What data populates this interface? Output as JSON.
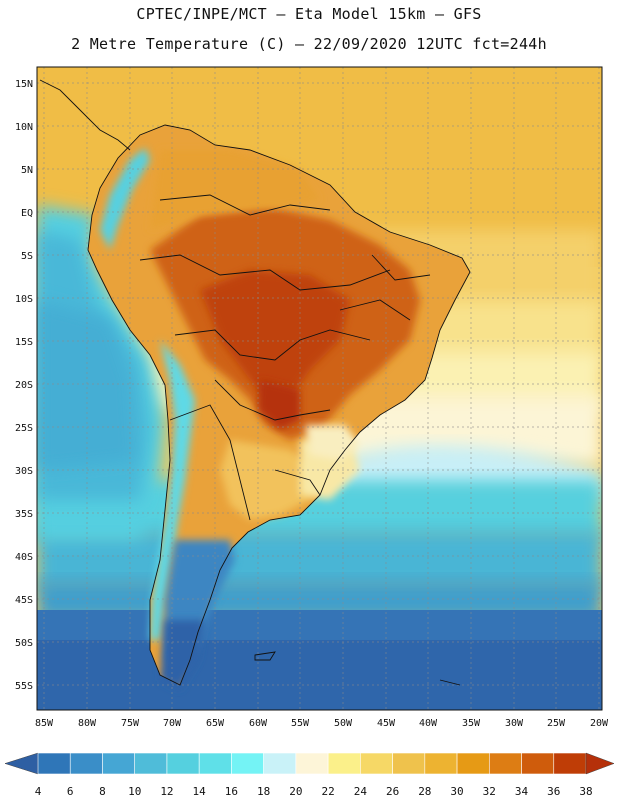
{
  "header": {
    "line1": "CPTEC/INPE/MCT –  Eta Model 15km – GFS",
    "line2": "2 Metre Temperature (C) – 22/09/2020 12UTC fct=244h"
  },
  "map": {
    "lat_ticks": [
      "15N",
      "10N",
      "5N",
      "EQ",
      "5S",
      "10S",
      "15S",
      "20S",
      "25S",
      "30S",
      "35S",
      "40S",
      "45S",
      "50S",
      "55S"
    ],
    "lon_ticks": [
      "85W",
      "80W",
      "75W",
      "70W",
      "65W",
      "60W",
      "55W",
      "50W",
      "45W",
      "40W",
      "35W",
      "30W",
      "25W",
      "20W"
    ],
    "lat_range": [
      -57,
      16
    ],
    "lon_range": [
      -86,
      -20
    ]
  },
  "colorbar": {
    "labels": [
      "4",
      "6",
      "8",
      "10",
      "12",
      "14",
      "16",
      "18",
      "20",
      "22",
      "24",
      "26",
      "28",
      "30",
      "32",
      "34",
      "36",
      "38"
    ],
    "colors": [
      "#2e5fa3",
      "#2f76b8",
      "#3a8ec8",
      "#45a6d4",
      "#4fbcd9",
      "#55d0df",
      "#5fe0e8",
      "#74f3f5",
      "#c9f2f8",
      "#fdf5d8",
      "#fbf08a",
      "#f6d866",
      "#efc24c",
      "#edb331",
      "#e69a15",
      "#dd7d14",
      "#cf5c0c",
      "#bf3d06",
      "#b5300a",
      "#3a75b8"
    ]
  }
}
